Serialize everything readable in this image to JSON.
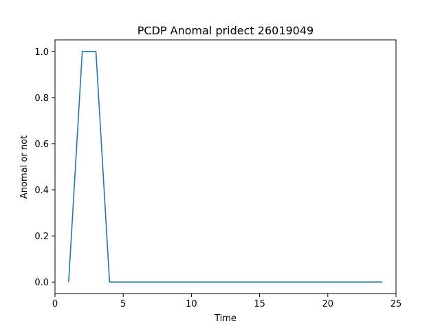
{
  "chart_data": {
    "type": "line",
    "title": "PCDP Anomal pridect 26019049",
    "xlabel": "Time",
    "ylabel": "Anomal or not",
    "xlim": [
      0,
      25
    ],
    "ylim": [
      -0.05,
      1.05
    ],
    "x_ticks": [
      0,
      5,
      10,
      15,
      20,
      25
    ],
    "y_ticks": [
      0.0,
      0.2,
      0.4,
      0.6,
      0.8,
      1.0
    ],
    "x_tick_labels": [
      "0",
      "5",
      "10",
      "15",
      "20",
      "25"
    ],
    "y_tick_labels": [
      "0.0",
      "0.2",
      "0.4",
      "0.6",
      "0.8",
      "1.0"
    ],
    "grid": false,
    "series": [
      {
        "color": "#1f77b4",
        "x": [
          1,
          2,
          3,
          4,
          5,
          6,
          7,
          8,
          9,
          10,
          11,
          12,
          13,
          14,
          15,
          16,
          17,
          18,
          19,
          20,
          21,
          22,
          23,
          24
        ],
        "y": [
          0,
          1,
          1,
          0,
          0,
          0,
          0,
          0,
          0,
          0,
          0,
          0,
          0,
          0,
          0,
          0,
          0,
          0,
          0,
          0,
          0,
          0,
          0,
          0
        ]
      }
    ]
  }
}
